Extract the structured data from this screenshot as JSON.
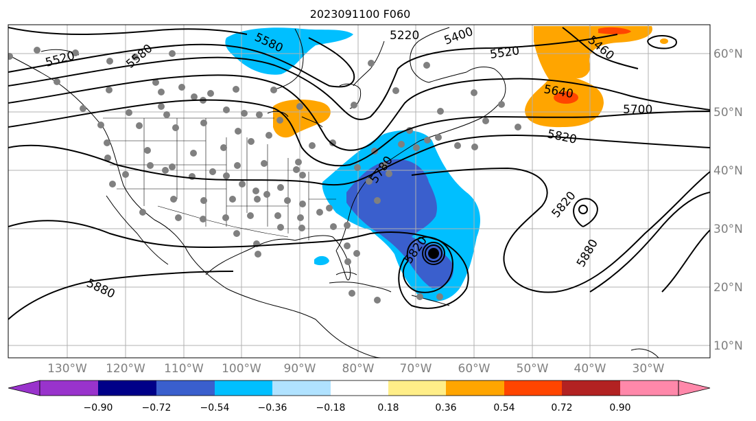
{
  "figure": {
    "title": "2023091100 F060"
  },
  "map": {
    "lon_labels": [
      "130°W",
      "120°W",
      "110°W",
      "100°W",
      "90°W",
      "80°W",
      "70°W",
      "60°W",
      "50°W",
      "40°W",
      "30°W"
    ],
    "lat_labels": [
      "60°N",
      "50°N",
      "40°N",
      "30°N",
      "20°N",
      "10°N"
    ],
    "contour_labels": [
      "5580",
      "5520",
      "5580",
      "5220",
      "5400",
      "5520",
      "5460",
      "5640",
      "5700",
      "5820",
      "5780",
      "5820",
      "5820",
      "5880",
      "5880"
    ],
    "colors": {
      "ocean_land": "#ffffff",
      "grid": "#b0b0b0",
      "coast": "#000000",
      "contour": "#000000",
      "dots": "#808080"
    }
  },
  "colorbar": {
    "tick_labels": [
      "−0.90",
      "−0.72",
      "−0.54",
      "−0.36",
      "−0.18",
      "0.18",
      "0.36",
      "0.54",
      "0.72",
      "0.90"
    ],
    "colors": [
      "#9933cc",
      "#000088",
      "#3a5fcd",
      "#00bfff",
      "#b0e2ff",
      "#ffffff",
      "#ffee88",
      "#ffa500",
      "#ff4500",
      "#b22222",
      "#ff88aa"
    ]
  }
}
